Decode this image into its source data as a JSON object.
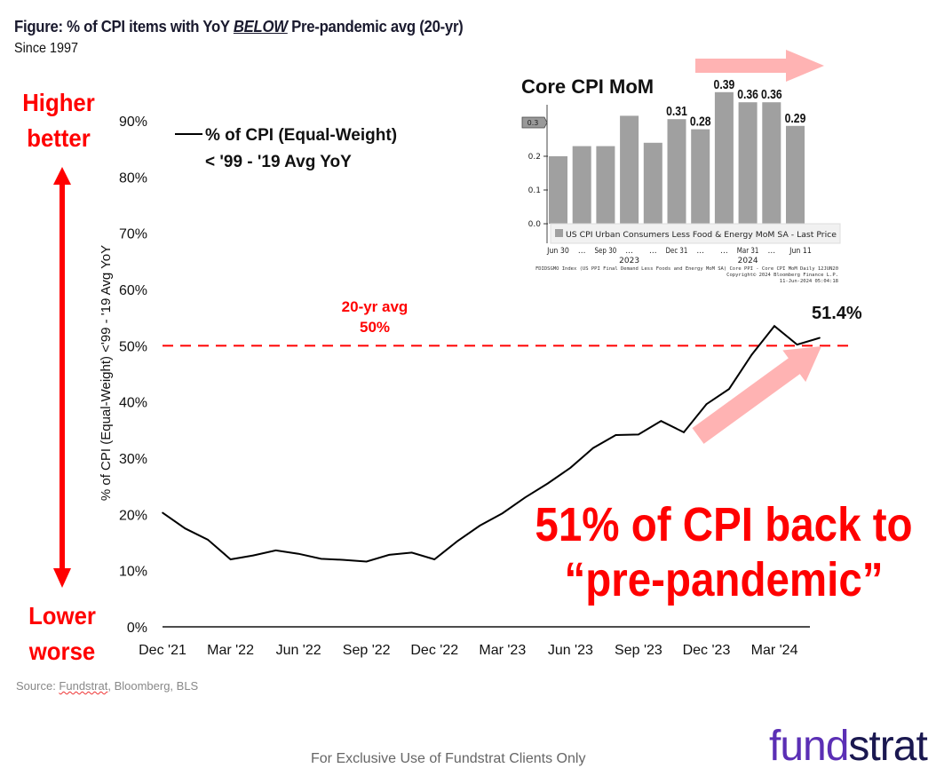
{
  "header": {
    "title_prefix": "Figure: % of CPI items with YoY ",
    "title_emphasis": "BELOW",
    "title_suffix": " Pre-pandemic avg (20-yr)",
    "subtitle": "Since 1997"
  },
  "annotations": {
    "higher_1": "Higher",
    "higher_2": "better",
    "lower_1": "Lower",
    "lower_2": "worse",
    "avg_1": "20-yr avg",
    "avg_2": "50%",
    "last_value": "51.4%",
    "headline_1": "51% of CPI back to",
    "headline_2": "“pre-pandemic”"
  },
  "colors": {
    "accent_red": "#ff0000",
    "arrow_pink": "#ffb3b3",
    "logo_purple": "#5b2fb5",
    "logo_navy": "#1a1850",
    "bar_gray": "#a0a0a0"
  },
  "chart_data": [
    {
      "type": "line",
      "title": "% of CPI items with YoY BELOW Pre-pandemic avg (20-yr)",
      "ylabel": "% of CPI (Equal-Weight) <'99 - '19 Avg YoY",
      "xlabel": "",
      "legend": {
        "label_1": "% of CPI (Equal-Weight)",
        "label_2": "< '99 - '19 Avg YoY",
        "placement": "top-left"
      },
      "ylim": [
        0,
        90
      ],
      "yticks": [
        "0%",
        "10%",
        "20%",
        "30%",
        "40%",
        "50%",
        "60%",
        "70%",
        "80%",
        "90%"
      ],
      "xticks": [
        "Dec '21",
        "Mar '22",
        "Jun '22",
        "Sep '22",
        "Dec '22",
        "Mar '23",
        "Jun '23",
        "Sep '23",
        "Dec '23",
        "Mar '24"
      ],
      "reference_line": {
        "value": 50,
        "label": "20-yr avg 50%"
      },
      "series": [
        {
          "name": "% of CPI (Equal-Weight) < '99 - '19 Avg YoY",
          "x": [
            "Dec '21",
            "Jan '22",
            "Feb '22",
            "Mar '22",
            "Apr '22",
            "May '22",
            "Jun '22",
            "Jul '22",
            "Aug '22",
            "Sep '22",
            "Oct '22",
            "Nov '22",
            "Dec '22",
            "Jan '23",
            "Feb '23",
            "Mar '23",
            "Apr '23",
            "May '23",
            "Jun '23",
            "Jul '23",
            "Aug '23",
            "Sep '23",
            "Oct '23",
            "Nov '23",
            "Dec '23",
            "Jan '24",
            "Feb '24",
            "Mar '24",
            "Apr '24",
            "May '24"
          ],
          "values": [
            20.3,
            17.5,
            15.5,
            12.0,
            12.7,
            13.6,
            13.0,
            12.1,
            11.9,
            11.6,
            12.8,
            13.2,
            12.0,
            15.2,
            18.0,
            20.2,
            23.0,
            25.5,
            28.3,
            31.8,
            34.1,
            34.2,
            36.6,
            34.6,
            39.6,
            42.3,
            48.4,
            53.5,
            50.2,
            51.4
          ]
        }
      ]
    },
    {
      "type": "bar",
      "title": "Core CPI MoM",
      "categories": [
        "Jun 30 2023",
        "Jul 2023",
        "Aug 2023",
        "Sep 30 2023",
        "Oct 2023",
        "Nov 2023",
        "Dec 31 2023",
        "Jan 2024",
        "Feb 2024",
        "Mar 31 2024",
        "Apr 2024"
      ],
      "values": [
        0.2,
        0.23,
        0.23,
        0.32,
        0.24,
        0.31,
        0.28,
        0.39,
        0.36,
        0.36,
        0.29
      ],
      "data_labels": [
        "",
        "",
        "",
        "",
        "",
        "0.31",
        "0.28",
        "0.39",
        "0.36",
        "0.36",
        "0.29"
      ],
      "ylim": [
        0,
        0.4
      ],
      "yticks": [
        "0.0",
        "0.1",
        "0.2"
      ],
      "last_price_tag": "0.3",
      "xticks": [
        "Jun 30",
        "...",
        "Sep 30",
        "...",
        "...",
        "Dec 31",
        "...",
        "...",
        "Mar 31",
        "...",
        "Jun 11"
      ],
      "year_labels": [
        "2023",
        "2024"
      ],
      "legend": "US CPI Urban Consumers Less Food & Energy MoM SA - Last Price",
      "footnote_1": "FDIDSGMO Index (US PPI Final Demand Less Foods and Energy MoM SA) Core PPI - Core CPI MoM  Daily 12JUN20",
      "footnote_2": "Copyright© 2024 Bloomberg Finance L.P.",
      "footnote_3": "11-Jun-2024 05:04:18"
    }
  ],
  "footer": {
    "source_label": "Source: ",
    "source_fundstrat": "Fundstrat",
    "source_rest": ", Bloomberg, BLS",
    "disclaimer": "For Exclusive Use of Fundstrat Clients Only",
    "logo_part1": "fund",
    "logo_part2": "strat"
  }
}
